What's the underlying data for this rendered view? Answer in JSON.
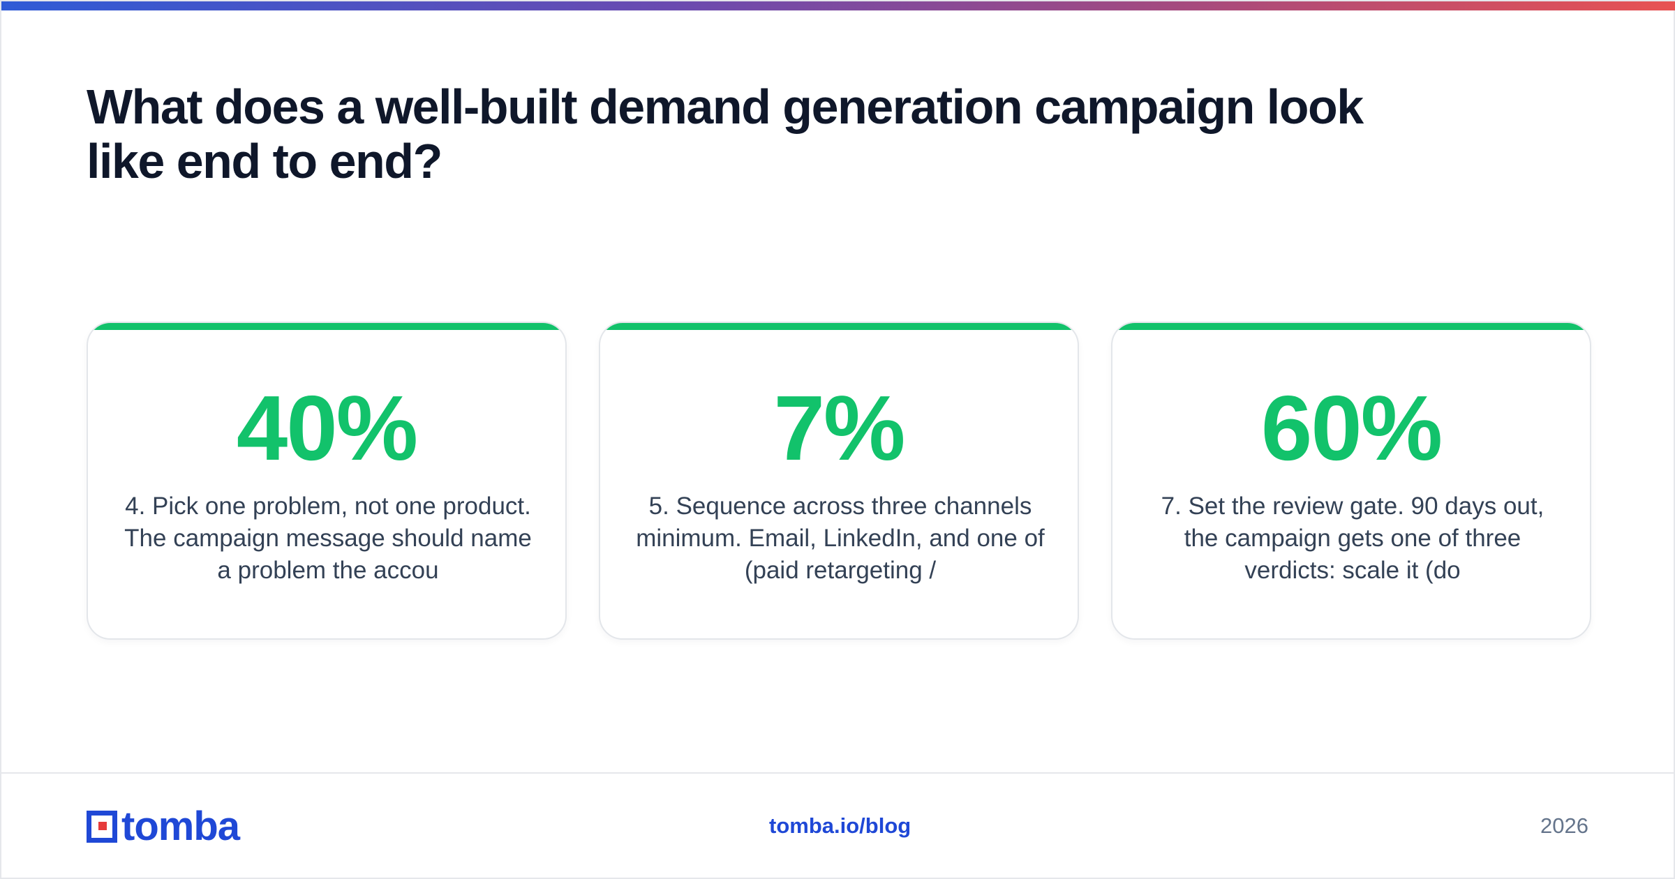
{
  "header": {
    "title": "What does a well-built demand generation campaign look like end to end?"
  },
  "cards": [
    {
      "stat": "40%",
      "text": "4. Pick one problem, not one product. The campaign message should name a problem the accou"
    },
    {
      "stat": "7%",
      "text": "5. Sequence across three channels minimum. Email, LinkedIn, and one of (paid retargeting /"
    },
    {
      "stat": "60%",
      "text": "7. Set the review gate. 90 days out, the campaign gets one of three verdicts: scale it (do"
    }
  ],
  "footer": {
    "logo_text": "tomba",
    "link": "tomba.io/blog",
    "year": "2026"
  },
  "colors": {
    "accent_green": "#12c26b",
    "brand_blue": "#1f48d6",
    "brand_red": "#e63b3b",
    "title_color": "#0f172a"
  }
}
